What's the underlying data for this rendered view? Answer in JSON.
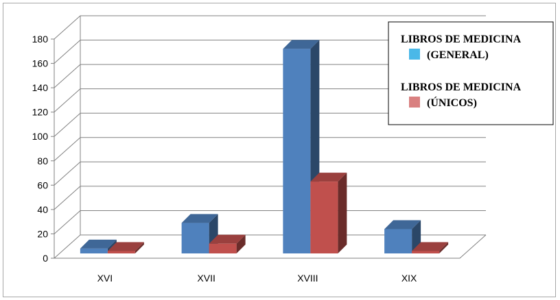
{
  "chart_data": {
    "type": "bar",
    "categories": [
      "XVI",
      "XVII",
      "XVIII",
      "XIX"
    ],
    "series": [
      {
        "name": "LIBROS DE MEDICINA (GENERAL)",
        "legend_lines": [
          "LIBROS DE MEDICINA",
          "(GENERAL)"
        ],
        "values": [
          4,
          25,
          168,
          20
        ],
        "color": "#4f81bd",
        "legend_color": "#4ab8e8"
      },
      {
        "name": "LIBROS DE MEDICINA (ÚNICOS)",
        "legend_lines": [
          "LIBROS DE MEDICINA",
          "(ÚNICOS)"
        ],
        "values": [
          2,
          8,
          59,
          2
        ],
        "color": "#c0504d",
        "legend_color": "#d98080"
      }
    ],
    "ylim": [
      0,
      180
    ],
    "yticks": [
      0,
      20,
      40,
      60,
      80,
      100,
      120,
      140,
      160,
      180
    ],
    "grid": true,
    "legend_position": "top-right",
    "three_d": true
  }
}
